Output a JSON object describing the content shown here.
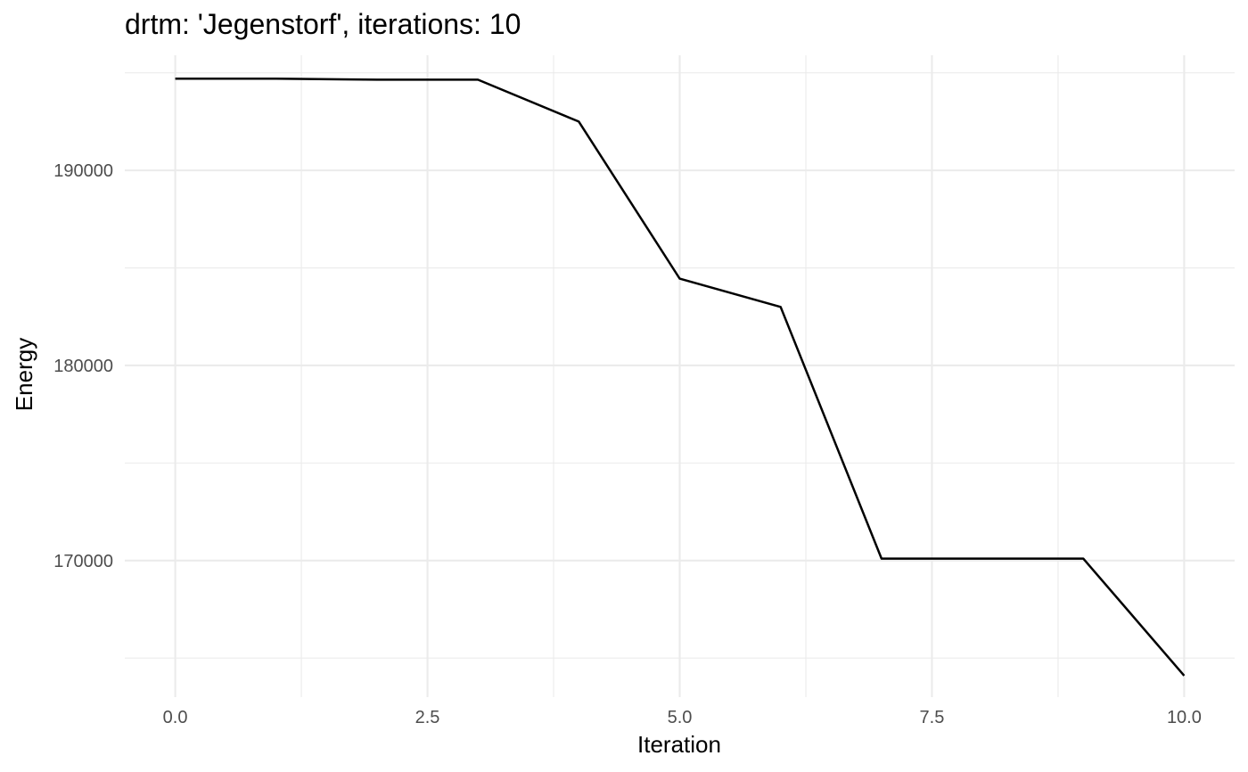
{
  "chart_data": {
    "type": "line",
    "title": "drtm: 'Jegenstorf', iterations: 10",
    "xlabel": "Iteration",
    "ylabel": "Energy",
    "xlim": [
      -0.5,
      10.5
    ],
    "ylim": [
      163000,
      195900
    ],
    "x_ticks": [
      {
        "value": 0,
        "label": "0.0"
      },
      {
        "value": 2.5,
        "label": "2.5"
      },
      {
        "value": 5,
        "label": "5.0"
      },
      {
        "value": 7.5,
        "label": "7.5"
      },
      {
        "value": 10,
        "label": "10.0"
      }
    ],
    "x_minor": [
      1.25,
      3.75,
      6.25,
      8.75
    ],
    "y_ticks": [
      {
        "value": 170000,
        "label": "170000"
      },
      {
        "value": 180000,
        "label": "180000"
      },
      {
        "value": 190000,
        "label": "190000"
      }
    ],
    "y_minor": [
      165000,
      175000,
      185000,
      195000
    ],
    "grid": true,
    "legend": "none",
    "series": [
      {
        "name": "Energy",
        "color": "#000000",
        "x": [
          0,
          1,
          2,
          3,
          4,
          5,
          6,
          7,
          8,
          9,
          10
        ],
        "values": [
          194700,
          194700,
          194650,
          194650,
          192500,
          184450,
          183000,
          170100,
          170100,
          170100,
          164100
        ]
      }
    ]
  }
}
